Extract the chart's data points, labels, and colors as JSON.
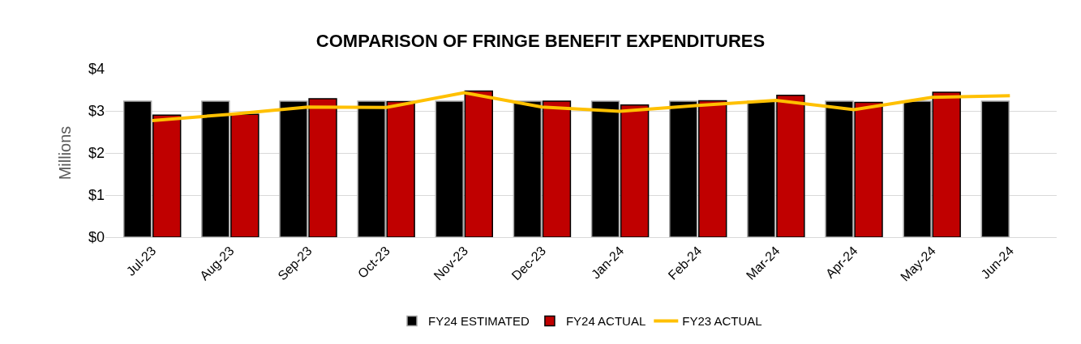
{
  "chart_data": {
    "type": "bar",
    "title": "COMPARISON OF FRINGE BENEFIT EXPENDITURES",
    "ylabel": "Millions",
    "categories": [
      "Jul-23",
      "Aug-23",
      "Sep-23",
      "Oct-23",
      "Nov-23",
      "Dec-23",
      "Jan-24",
      "Feb-24",
      "Mar-24",
      "Apr-24",
      "May-24",
      "Jun-24"
    ],
    "series": [
      {
        "name": "FY24 ESTIMATED",
        "color": "#000000",
        "values": [
          3.23,
          3.23,
          3.23,
          3.23,
          3.23,
          3.23,
          3.23,
          3.23,
          3.23,
          3.23,
          3.23,
          3.23
        ]
      },
      {
        "name": "FY24 ACTUAL",
        "color": "#c00000",
        "values": [
          2.9,
          2.92,
          3.29,
          3.22,
          3.47,
          3.23,
          3.14,
          3.24,
          3.37,
          3.2,
          3.44,
          null
        ]
      },
      {
        "name": "FY23 ACTUAL",
        "type": "line",
        "color": "#ffc000",
        "values": [
          2.77,
          2.92,
          3.09,
          3.08,
          3.43,
          3.09,
          2.99,
          3.13,
          3.25,
          3.03,
          3.32,
          3.36
        ]
      }
    ],
    "ylim": [
      0,
      4
    ],
    "yticks": [
      {
        "value": 0,
        "label": "$0"
      },
      {
        "value": 1,
        "label": "$1"
      },
      {
        "value": 2,
        "label": "$2"
      },
      {
        "value": 3,
        "label": "$3"
      },
      {
        "value": 4,
        "label": "$4"
      }
    ],
    "grid": "y",
    "legend": "bottom",
    "marker": "none",
    "line_style": "solid"
  }
}
